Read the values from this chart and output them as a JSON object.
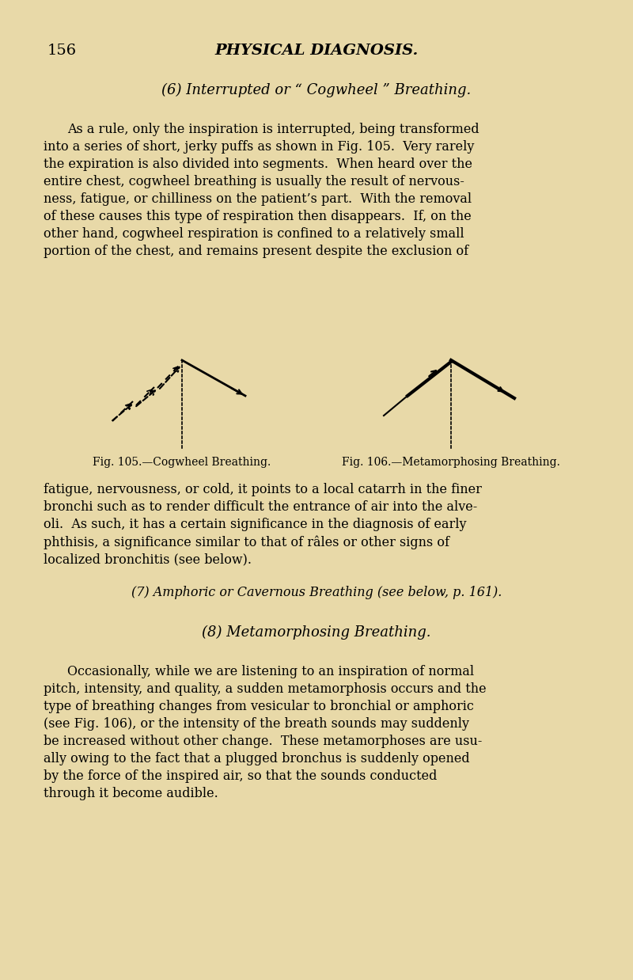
{
  "bg_color": "#e8d9a8",
  "page_number": "156",
  "header_title": "PHYSICAL DIAGNOSIS.",
  "section_title": "(6) Interrupted or “ Cogwheel ” Breathing.",
  "paragraph1": "As a rule, only the inspiration is interrupted, being transformed\ninto a series of short, jerky puffs as shown in Fig. 105.  Very rarely\nthe expiration is also divided into segments.  When heard over the\nentire chest, cogwheel breathing is usually the result of nervous-\nness, fatigue, or chilliness on the patient’s part.  With the removal\nof these causes this type of respiration then disappears.  If, on the\nother hand, cogwheel respiration is confined to a relatively small\nportion of the chest, and remains present despite the exclusion of",
  "fig105_caption": "Fig. 105.—Cogwheel Breathing.",
  "fig106_caption": "Fig. 106.—Metamorphosing Breathing.",
  "paragraph2": "fatigue, nervousness, or cold, it points to a local catarrh in the finer\nbronchi such as to render difficult the entrance of air into the alve-\noli.  As such, it has a certain significance in the diagnosis of early\nphthisis, a significance similar to that of râles or other signs of\nlocalized bronchitis (see below).",
  "section7": "(7) Amphoric or Cavernous Breathing (see below, p. 161).",
  "section8_title": "(8) Metamorphosing Breathing.",
  "paragraph3": "Occasionally, while we are listening to an inspiration of normal\npitch, intensity, and quality, a sudden metamorphosis occurs and the\ntype of breathing changes from vesicular to bronchial or amphoric\n(see Fig. 106), or the intensity of the breath sounds may suddenly\nbe increased without other change.  These metamorphoses are usu-\nally owing to the fact that a plugged bronchus is suddenly opened\nby the force of the inspired air, so that the sounds conducted\nthrough it become audible."
}
